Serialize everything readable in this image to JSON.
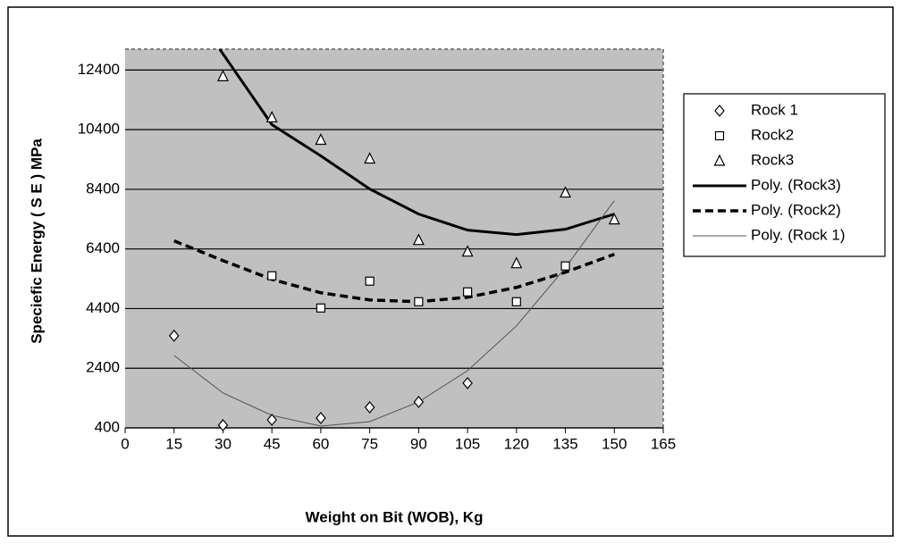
{
  "chart_data": {
    "type": "scatter",
    "xlabel": "Weight on Bit (WOB), Kg",
    "ylabel": "Speciefic Energy ( S E ) MPa",
    "xlim": [
      0,
      165
    ],
    "xticks": [
      0,
      15,
      30,
      45,
      60,
      75,
      90,
      105,
      120,
      135,
      150,
      165
    ],
    "ylim": [
      400,
      13100
    ],
    "yticks": [
      400,
      2400,
      4400,
      6400,
      8400,
      10400,
      12400
    ],
    "grid": true,
    "legend": "right",
    "background": "#c0c0c0",
    "series": [
      {
        "name": "Rock 1",
        "marker": "diamond",
        "color": "#000000",
        "x": [
          15,
          30,
          45,
          60,
          75,
          90,
          105
        ],
        "values": [
          3490,
          490,
          670,
          730,
          1090,
          1270,
          1900
        ]
      },
      {
        "name": "Rock2",
        "marker": "square",
        "color": "#000000",
        "x": [
          45,
          60,
          75,
          90,
          105,
          120,
          135
        ],
        "values": [
          5500,
          4420,
          5320,
          4630,
          4960,
          4630,
          5830
        ]
      },
      {
        "name": "Rock3",
        "marker": "triangle",
        "color": "#000000",
        "x": [
          30,
          45,
          60,
          75,
          90,
          105,
          120,
          135,
          150
        ],
        "values": [
          12190,
          10810,
          10060,
          9430,
          6700,
          6310,
          5920,
          8290,
          7390
        ]
      },
      {
        "name": "Poly. (Rock3)",
        "line": "solid",
        "color": "#000000",
        "x": [
          29,
          45,
          60,
          75,
          90,
          105,
          120,
          135,
          150
        ],
        "values": [
          13100,
          10570,
          9520,
          8410,
          7570,
          7030,
          6880,
          7060,
          7570
        ]
      },
      {
        "name": "Poly. (Rock2)",
        "line": "dashed",
        "color": "#000000",
        "x": [
          15,
          30,
          45,
          60,
          75,
          90,
          105,
          120,
          135,
          150
        ],
        "values": [
          6670,
          6010,
          5380,
          4930,
          4690,
          4630,
          4780,
          5110,
          5620,
          6220
        ]
      },
      {
        "name": "Poly. (Rock 1)",
        "line": "thin",
        "color": "#555555",
        "x": [
          15,
          30,
          45,
          60,
          75,
          90,
          105,
          120,
          135,
          150
        ],
        "values": [
          2830,
          1570,
          820,
          460,
          610,
          1270,
          2320,
          3820,
          5770,
          8020
        ]
      }
    ]
  }
}
